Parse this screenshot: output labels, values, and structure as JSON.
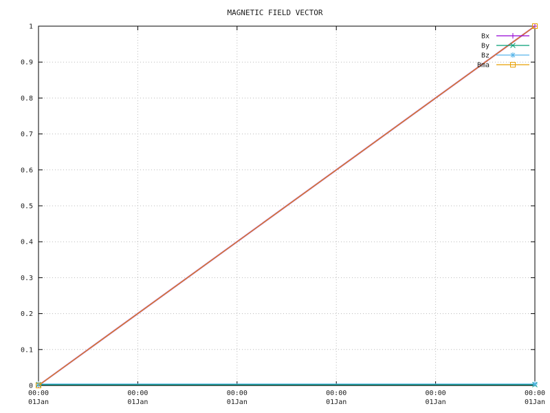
{
  "chart_data": {
    "type": "line",
    "title": "MAGNETIC FIELD VECTOR",
    "xlabel": "",
    "ylabel": "",
    "xlim": [
      0,
      5
    ],
    "ylim": [
      0,
      1
    ],
    "grid": true,
    "grid_style": "dotted",
    "legend_position": "top-right",
    "y_ticks": [
      "0",
      "0.1",
      "0.2",
      "0.3",
      "0.4",
      "0.5",
      "0.6",
      "0.7",
      "0.8",
      "0.9",
      "1"
    ],
    "y_tick_values": [
      0,
      0.1,
      0.2,
      0.3,
      0.4,
      0.5,
      0.6,
      0.7,
      0.8,
      0.9,
      1
    ],
    "x_tick_values": [
      0,
      1,
      2,
      3,
      4,
      5
    ],
    "x_tick_time_labels": [
      "00:00",
      "00:00",
      "00:00",
      "00:00",
      "00:00",
      "00:00"
    ],
    "x_tick_date_labels": [
      "01Jan",
      "01Jan",
      "01Jan",
      "01Jan",
      "01Jan",
      "01Jan"
    ],
    "series": [
      {
        "name": "Bx",
        "color": "#9400D3",
        "marker": "plus",
        "x": [
          0,
          5
        ],
        "y": [
          0,
          1
        ]
      },
      {
        "name": "By",
        "color": "#009E73",
        "marker": "x",
        "x": [
          0,
          5
        ],
        "y": [
          0.002,
          0.002
        ]
      },
      {
        "name": "Bz",
        "color": "#56B4E9",
        "marker": "asterisk",
        "x": [
          0,
          5
        ],
        "y": [
          0.004,
          0.004
        ]
      },
      {
        "name": "Bma",
        "color": "#E69F00",
        "marker": "square-open",
        "x": [
          0,
          5
        ],
        "y": [
          0,
          1
        ]
      }
    ],
    "colors": {
      "axis": "#000000",
      "grid": "#b8b8b8",
      "text": "#1a1a1a",
      "background": "#ffffff"
    }
  }
}
